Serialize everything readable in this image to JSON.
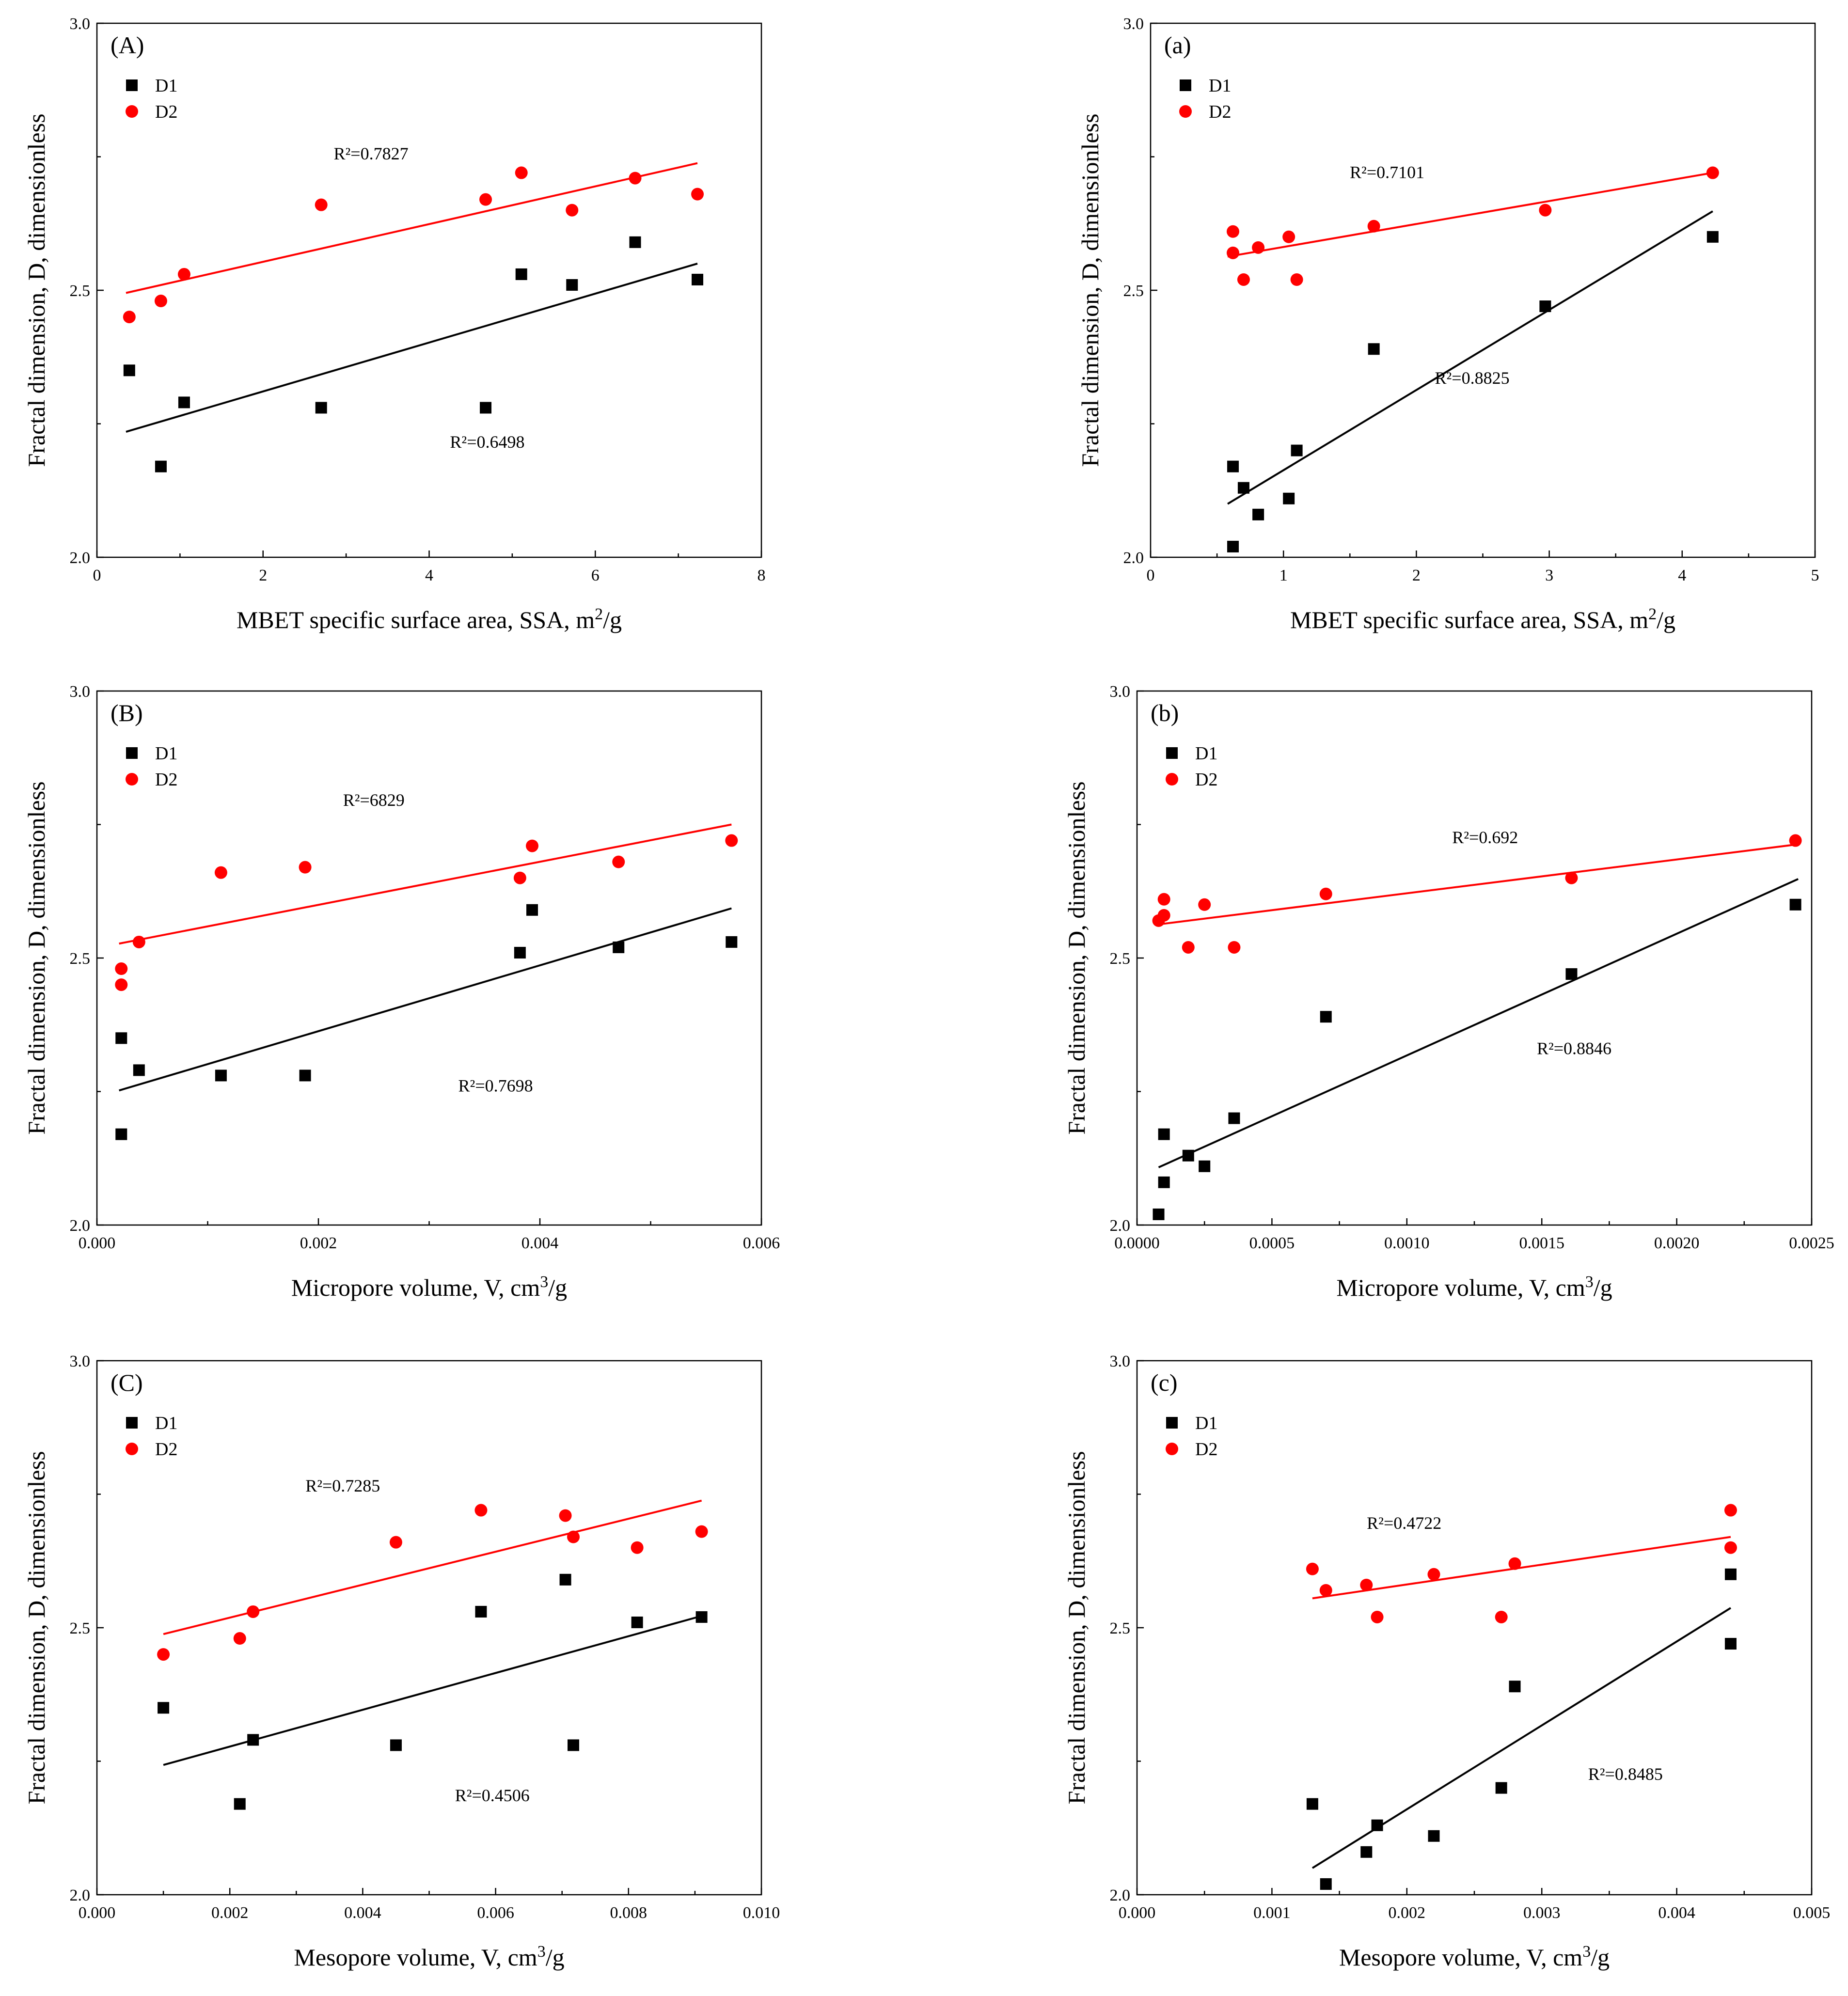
{
  "colors": {
    "D1": "#000000",
    "D2": "#ff0000"
  },
  "chart_data": [
    {
      "type": "scatter",
      "panel_label": "(A)",
      "xlabel": "MBET specific surface area, SSA, m",
      "xlabel_sup": "2",
      "xlabel_suffix": "/g",
      "ylabel": "Fractal dimension, D, dimensionless",
      "xlim": [
        0,
        8
      ],
      "ylim": [
        2.0,
        3.0
      ],
      "xticks": [
        "0",
        "2",
        "4",
        "6",
        "8"
      ],
      "yticks": [
        "2.0",
        "2.5",
        "3.0"
      ],
      "legend": [
        "D1",
        "D2"
      ],
      "series": [
        {
          "name": "D1",
          "points": [
            [
              0.39,
              2.35
            ],
            [
              0.77,
              2.17
            ],
            [
              1.05,
              2.29
            ],
            [
              2.7,
              2.28
            ],
            [
              4.68,
              2.28
            ],
            [
              5.11,
              2.53
            ],
            [
              5.72,
              2.51
            ],
            [
              6.48,
              2.59
            ],
            [
              7.23,
              2.52
            ]
          ],
          "fit": [
            [
              0.35,
              2.235
            ],
            [
              7.23,
              2.55
            ]
          ],
          "r2_label": "R²=0.6498",
          "r2_at": [
            4.7,
            2.205
          ]
        },
        {
          "name": "D2",
          "points": [
            [
              0.39,
              2.45
            ],
            [
              0.77,
              2.48
            ],
            [
              1.05,
              2.53
            ],
            [
              2.7,
              2.66
            ],
            [
              4.68,
              2.67
            ],
            [
              5.11,
              2.72
            ],
            [
              5.72,
              2.65
            ],
            [
              6.48,
              2.71
            ],
            [
              7.23,
              2.68
            ]
          ],
          "fit": [
            [
              0.35,
              2.495
            ],
            [
              7.23,
              2.738
            ]
          ],
          "r2_label": "R²=0.7827",
          "r2_at": [
            3.3,
            2.745
          ]
        }
      ]
    },
    {
      "type": "scatter",
      "panel_label": "(a)",
      "xlabel": "MBET specific surface area, SSA, m",
      "xlabel_sup": "2",
      "xlabel_suffix": "/g",
      "ylabel": "Fractal dimension, D, dimensionless",
      "xlim": [
        0,
        5
      ],
      "ylim": [
        2.0,
        3.0
      ],
      "xticks": [
        "0",
        "1",
        "2",
        "3",
        "4",
        "5"
      ],
      "yticks": [
        "2.0",
        "2.5",
        "3.0"
      ],
      "legend": [
        "D1",
        "D2"
      ],
      "series": [
        {
          "name": "D1",
          "points": [
            [
              0.62,
              2.02
            ],
            [
              0.62,
              2.17
            ],
            [
              0.7,
              2.13
            ],
            [
              0.81,
              2.08
            ],
            [
              1.04,
              2.11
            ],
            [
              1.1,
              2.2
            ],
            [
              1.68,
              2.39
            ],
            [
              2.97,
              2.47
            ],
            [
              4.23,
              2.6
            ]
          ],
          "fit": [
            [
              0.58,
              2.1
            ],
            [
              4.23,
              2.648
            ]
          ],
          "r2_label": "R²=0.8825",
          "r2_at": [
            2.42,
            2.325
          ]
        },
        {
          "name": "D2",
          "points": [
            [
              0.62,
              2.61
            ],
            [
              0.62,
              2.57
            ],
            [
              0.7,
              2.52
            ],
            [
              0.81,
              2.58
            ],
            [
              1.04,
              2.6
            ],
            [
              1.1,
              2.52
            ],
            [
              1.68,
              2.62
            ],
            [
              2.97,
              2.65
            ],
            [
              4.23,
              2.72
            ]
          ],
          "fit": [
            [
              0.58,
              2.563
            ],
            [
              4.23,
              2.72
            ]
          ],
          "r2_label": "R²=0.7101",
          "r2_at": [
            1.78,
            2.71
          ]
        }
      ]
    },
    {
      "type": "scatter",
      "panel_label": "(B)",
      "xlabel": "Micropore volume, V, cm",
      "xlabel_sup": "3",
      "xlabel_suffix": "/g",
      "ylabel": "Fractal dimension, D, dimensionless",
      "xlim": [
        0,
        0.006
      ],
      "ylim": [
        2.0,
        3.0
      ],
      "xticks": [
        "0.000",
        "0.002",
        "0.004",
        "0.006"
      ],
      "yticks": [
        "2.0",
        "2.5",
        "3.0"
      ],
      "legend": [
        "D1",
        "D2"
      ],
      "series": [
        {
          "name": "D1",
          "points": [
            [
              0.00022,
              2.17
            ],
            [
              0.00022,
              2.35
            ],
            [
              0.00038,
              2.29
            ],
            [
              0.00112,
              2.28
            ],
            [
              0.00188,
              2.28
            ],
            [
              0.00382,
              2.51
            ],
            [
              0.00393,
              2.59
            ],
            [
              0.00471,
              2.52
            ],
            [
              0.00573,
              2.53
            ]
          ],
          "fit": [
            [
              0.0002,
              2.252
            ],
            [
              0.00573,
              2.593
            ]
          ],
          "r2_label": "R²=0.7698",
          "r2_at": [
            0.0036,
            2.25
          ]
        },
        {
          "name": "D2",
          "points": [
            [
              0.00022,
              2.45
            ],
            [
              0.00022,
              2.48
            ],
            [
              0.00038,
              2.53
            ],
            [
              0.00112,
              2.66
            ],
            [
              0.00188,
              2.67
            ],
            [
              0.00382,
              2.65
            ],
            [
              0.00393,
              2.71
            ],
            [
              0.00471,
              2.68
            ],
            [
              0.00573,
              2.72
            ]
          ],
          "fit": [
            [
              0.0002,
              2.527
            ],
            [
              0.00573,
              2.75
            ]
          ],
          "r2_label": "R²=6829",
          "r2_at": [
            0.0025,
            2.785
          ]
        }
      ]
    },
    {
      "type": "scatter",
      "panel_label": "(b)",
      "xlabel": "Micropore volume, V, cm",
      "xlabel_sup": "3",
      "xlabel_suffix": "/g",
      "ylabel": "Fractal dimension, D, dimensionless",
      "xlim": [
        0,
        0.0025
      ],
      "ylim": [
        2.0,
        3.0
      ],
      "xticks": [
        "0.0000",
        "0.0005",
        "0.0010",
        "0.0015",
        "0.0020",
        "0.0025"
      ],
      "yticks": [
        "2.0",
        "2.5",
        "3.0"
      ],
      "legend": [
        "D1",
        "D2"
      ],
      "series": [
        {
          "name": "D1",
          "points": [
            [
              8e-05,
              2.02
            ],
            [
              0.0001,
              2.08
            ],
            [
              0.0001,
              2.17
            ],
            [
              0.00019,
              2.13
            ],
            [
              0.00025,
              2.11
            ],
            [
              0.00036,
              2.2
            ],
            [
              0.0007,
              2.39
            ],
            [
              0.00161,
              2.47
            ],
            [
              0.00244,
              2.6
            ]
          ],
          "fit": [
            [
              8e-05,
              2.108
            ],
            [
              0.00245,
              2.648
            ]
          ],
          "r2_label": "R²=0.8846",
          "r2_at": [
            0.00162,
            2.32
          ]
        },
        {
          "name": "D2",
          "points": [
            [
              8e-05,
              2.57
            ],
            [
              0.0001,
              2.58
            ],
            [
              0.0001,
              2.61
            ],
            [
              0.00019,
              2.52
            ],
            [
              0.00025,
              2.6
            ],
            [
              0.00036,
              2.52
            ],
            [
              0.0007,
              2.62
            ],
            [
              0.00161,
              2.65
            ],
            [
              0.00244,
              2.72
            ]
          ],
          "fit": [
            [
              8e-05,
              2.563
            ],
            [
              0.00245,
              2.713
            ]
          ],
          "r2_label": "R²=0.692",
          "r2_at": [
            0.00129,
            2.715
          ]
        }
      ]
    },
    {
      "type": "scatter",
      "panel_label": "(C)",
      "xlabel": "Mesopore volume, V, cm",
      "xlabel_sup": "3",
      "xlabel_suffix": "/g",
      "ylabel": "Fractal dimension, D, dimensionless",
      "xlim": [
        0,
        0.01
      ],
      "ylim": [
        2.0,
        3.0
      ],
      "xticks": [
        "0.000",
        "0.002",
        "0.004",
        "0.006",
        "0.008",
        "0.010"
      ],
      "yticks": [
        "2.0",
        "2.5",
        "3.0"
      ],
      "legend": [
        "D1",
        "D2"
      ],
      "series": [
        {
          "name": "D1",
          "points": [
            [
              0.001,
              2.35
            ],
            [
              0.00215,
              2.17
            ],
            [
              0.00235,
              2.29
            ],
            [
              0.0045,
              2.28
            ],
            [
              0.00578,
              2.53
            ],
            [
              0.00705,
              2.59
            ],
            [
              0.00717,
              2.28
            ],
            [
              0.00813,
              2.51
            ],
            [
              0.0091,
              2.52
            ]
          ],
          "fit": [
            [
              0.001,
              2.243
            ],
            [
              0.0091,
              2.522
            ]
          ],
          "r2_label": "R²=0.4506",
          "r2_at": [
            0.00595,
            2.175
          ]
        },
        {
          "name": "D2",
          "points": [
            [
              0.001,
              2.45
            ],
            [
              0.00215,
              2.48
            ],
            [
              0.00235,
              2.53
            ],
            [
              0.0045,
              2.66
            ],
            [
              0.00578,
              2.72
            ],
            [
              0.00705,
              2.71
            ],
            [
              0.00717,
              2.67
            ],
            [
              0.00813,
              2.65
            ],
            [
              0.0091,
              2.68
            ]
          ],
          "fit": [
            [
              0.001,
              2.488
            ],
            [
              0.0091,
              2.738
            ]
          ],
          "r2_label": "R²=0.7285",
          "r2_at": [
            0.0037,
            2.755
          ]
        }
      ]
    },
    {
      "type": "scatter",
      "panel_label": "(c)",
      "xlabel": "Mesopore volume, V, cm",
      "xlabel_sup": "3",
      "xlabel_suffix": "/g",
      "ylabel": "Fractal dimension, D, dimensionless",
      "xlim": [
        0,
        0.005
      ],
      "ylim": [
        2.0,
        3.0
      ],
      "xticks": [
        "0.000",
        "0.001",
        "0.002",
        "0.003",
        "0.004",
        "0.005"
      ],
      "yticks": [
        "2.0",
        "2.5",
        "3.0"
      ],
      "legend": [
        "D1",
        "D2"
      ],
      "series": [
        {
          "name": "D1",
          "points": [
            [
              0.0013,
              2.17
            ],
            [
              0.0014,
              2.02
            ],
            [
              0.0017,
              2.08
            ],
            [
              0.00178,
              2.13
            ],
            [
              0.0022,
              2.11
            ],
            [
              0.0027,
              2.2
            ],
            [
              0.0028,
              2.39
            ],
            [
              0.0044,
              2.47
            ],
            [
              0.0044,
              2.6
            ]
          ],
          "fit": [
            [
              0.0013,
              2.05
            ],
            [
              0.0044,
              2.537
            ]
          ],
          "r2_label": "R²=0.8485",
          "r2_at": [
            0.00362,
            2.215
          ]
        },
        {
          "name": "D2",
          "points": [
            [
              0.0013,
              2.61
            ],
            [
              0.0014,
              2.57
            ],
            [
              0.0017,
              2.58
            ],
            [
              0.00178,
              2.52
            ],
            [
              0.0022,
              2.6
            ],
            [
              0.0027,
              2.52
            ],
            [
              0.0028,
              2.62
            ],
            [
              0.0044,
              2.65
            ],
            [
              0.0044,
              2.72
            ]
          ],
          "fit": [
            [
              0.0013,
              2.555
            ],
            [
              0.0044,
              2.67
            ]
          ],
          "r2_label": "R²=0.4722",
          "r2_at": [
            0.00198,
            2.685
          ]
        }
      ]
    }
  ]
}
